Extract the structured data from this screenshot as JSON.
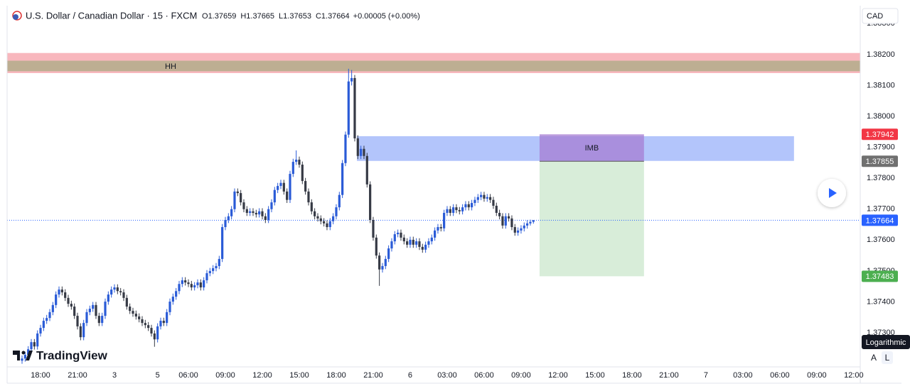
{
  "header": {
    "symbol": "U.S. Dollar / Canadian Dollar · 15 · FXCM",
    "ohlc": [
      {
        "key": "O",
        "value": 1.37659
      },
      {
        "key": "H",
        "value": 1.37665
      },
      {
        "key": "L",
        "value": 1.37653
      },
      {
        "key": "C",
        "value": 1.37664
      }
    ],
    "change": "+0.00005 (+0.00%)"
  },
  "chart_data": {
    "type": "candlestick",
    "up_color": "#2a5bd7",
    "down_color": "#363a45",
    "grid": false,
    "xlim": [
      -4.85,
      272.1
    ],
    "xticks": [
      {
        "value": 6,
        "label": "18:00"
      },
      {
        "value": 18,
        "label": "21:00"
      },
      {
        "value": 30,
        "label": "3"
      },
      {
        "value": 44,
        "label": "5"
      },
      {
        "value": 54,
        "label": "06:00"
      },
      {
        "value": 66,
        "label": "09:00"
      },
      {
        "value": 78,
        "label": "12:00"
      },
      {
        "value": 90,
        "label": "15:00"
      },
      {
        "value": 102,
        "label": "18:00"
      },
      {
        "value": 114,
        "label": "21:00"
      },
      {
        "value": 126,
        "label": "6"
      },
      {
        "value": 138,
        "label": "03:00"
      },
      {
        "value": 150,
        "label": "06:00"
      },
      {
        "value": 162,
        "label": "09:00"
      },
      {
        "value": 174,
        "label": "12:00"
      },
      {
        "value": 186,
        "label": "15:00"
      },
      {
        "value": 198,
        "label": "18:00"
      },
      {
        "value": 210,
        "label": "21:00"
      },
      {
        "value": 222,
        "label": "7"
      },
      {
        "value": 234,
        "label": "03:00"
      },
      {
        "value": 246,
        "label": "06:00"
      },
      {
        "value": 258,
        "label": "09:00"
      },
      {
        "value": 270,
        "label": "12:00"
      }
    ],
    "ylim": [
      1.3719,
      1.38358
    ],
    "yticks": [
      {
        "value": 1.383,
        "label": "1.38300"
      },
      {
        "value": 1.382,
        "label": "1.38200"
      },
      {
        "value": 1.381,
        "label": "1.38100"
      },
      {
        "value": 1.38,
        "label": "1.38000"
      },
      {
        "value": 1.379,
        "label": "1.37900"
      },
      {
        "value": 1.378,
        "label": "1.37800"
      },
      {
        "value": 1.377,
        "label": "1.37700"
      },
      {
        "value": 1.376,
        "label": "1.37600"
      },
      {
        "value": 1.375,
        "label": "1.37500"
      },
      {
        "value": 1.374,
        "label": "1.37400"
      },
      {
        "value": 1.373,
        "label": "1.37300"
      }
    ],
    "current_price": 1.37664,
    "current_color": "#2962ff",
    "zones": [
      {
        "from": 1.3814,
        "to": 1.38205,
        "color": "#f8b7bd"
      },
      {
        "label": "HH",
        "from": 1.38146,
        "to": 1.3818,
        "color": "#bdae92"
      }
    ],
    "imbalance": {
      "from": 1.37856,
      "to": 1.37936,
      "x_from": 108.7,
      "x_to": 250.6,
      "color": "#b3c5fb"
    },
    "position": {
      "label": "IMB",
      "entry": 1.37855,
      "stop": 1.37942,
      "target": 1.37483,
      "x_from": 168,
      "x_to": 201.9,
      "stop_color": "#f23645",
      "entry_color": "#707070",
      "target_color": "#4caf50"
    },
    "candles": [
      [
        1.3721,
        1.37227,
        1.372,
        1.37217
      ],
      [
        1.37217,
        1.37239,
        1.37207,
        1.37229
      ],
      [
        1.37229,
        1.37257,
        1.37219,
        1.37247
      ],
      [
        1.37247,
        1.3728,
        1.37237,
        1.3727
      ],
      [
        1.3727,
        1.3728,
        1.37246,
        1.37256
      ],
      [
        1.37256,
        1.37308,
        1.37246,
        1.37298
      ],
      [
        1.37298,
        1.37326,
        1.37288,
        1.37316
      ],
      [
        1.37316,
        1.37349,
        1.37306,
        1.37339
      ],
      [
        1.37339,
        1.37358,
        1.37329,
        1.37348
      ],
      [
        1.37348,
        1.37377,
        1.37338,
        1.37367
      ],
      [
        1.37367,
        1.374,
        1.37357,
        1.3739
      ],
      [
        1.3739,
        1.37434,
        1.3738,
        1.37424
      ],
      [
        1.37424,
        1.3745,
        1.37414,
        1.3744
      ],
      [
        1.3744,
        1.3745,
        1.37421,
        1.37431
      ],
      [
        1.37431,
        1.37441,
        1.37403,
        1.37413
      ],
      [
        1.37413,
        1.37423,
        1.37384,
        1.37394
      ],
      [
        1.37394,
        1.37404,
        1.37375,
        1.37385
      ],
      [
        1.37385,
        1.37395,
        1.37345,
        1.37355
      ],
      [
        1.37355,
        1.37365,
        1.37311,
        1.37321
      ],
      [
        1.37321,
        1.37331,
        1.37276,
        1.37286
      ],
      [
        1.37286,
        1.37342,
        1.37276,
        1.37332
      ],
      [
        1.37332,
        1.37377,
        1.37322,
        1.37367
      ],
      [
        1.37367,
        1.37388,
        1.37357,
        1.37378
      ],
      [
        1.37378,
        1.374,
        1.37368,
        1.3739
      ],
      [
        1.3739,
        1.374,
        1.37345,
        1.37355
      ],
      [
        1.37355,
        1.37365,
        1.37322,
        1.37332
      ],
      [
        1.37332,
        1.37365,
        1.37322,
        1.37355
      ],
      [
        1.37355,
        1.37411,
        1.37345,
        1.37401
      ],
      [
        1.37401,
        1.37434,
        1.37391,
        1.37424
      ],
      [
        1.37424,
        1.3745,
        1.37414,
        1.3744
      ],
      [
        1.3744,
        1.37457,
        1.3743,
        1.37447
      ],
      [
        1.37447,
        1.37457,
        1.37425,
        1.37435
      ],
      [
        1.37435,
        1.37445,
        1.37421,
        1.37431
      ],
      [
        1.37431,
        1.37441,
        1.37403,
        1.37413
      ],
      [
        1.37413,
        1.37423,
        1.37375,
        1.37385
      ],
      [
        1.37385,
        1.37395,
        1.37361,
        1.37371
      ],
      [
        1.37371,
        1.37381,
        1.37352,
        1.37362
      ],
      [
        1.37362,
        1.37372,
        1.37343,
        1.37353
      ],
      [
        1.37353,
        1.37363,
        1.37334,
        1.37344
      ],
      [
        1.37344,
        1.37354,
        1.37322,
        1.37332
      ],
      [
        1.37332,
        1.37342,
        1.37315,
        1.37325
      ],
      [
        1.37325,
        1.37335,
        1.37306,
        1.37316
      ],
      [
        1.37316,
        1.37326,
        1.37288,
        1.37298
      ],
      [
        1.37298,
        1.37308,
        1.37255,
        1.37279
      ],
      [
        1.37279,
        1.37331,
        1.37269,
        1.37321
      ],
      [
        1.37321,
        1.37349,
        1.37311,
        1.37339
      ],
      [
        1.37339,
        1.37349,
        1.37322,
        1.37332
      ],
      [
        1.37332,
        1.37377,
        1.37322,
        1.37367
      ],
      [
        1.37367,
        1.37411,
        1.37357,
        1.37401
      ],
      [
        1.37401,
        1.37427,
        1.37391,
        1.37417
      ],
      [
        1.37417,
        1.37445,
        1.37407,
        1.37435
      ],
      [
        1.37435,
        1.37468,
        1.37425,
        1.37458
      ],
      [
        1.37458,
        1.3748,
        1.37448,
        1.3747
      ],
      [
        1.3747,
        1.3748,
        1.37453,
        1.37463
      ],
      [
        1.37463,
        1.37473,
        1.37448,
        1.37458
      ],
      [
        1.37458,
        1.37468,
        1.37437,
        1.37447
      ],
      [
        1.37447,
        1.37464,
        1.37437,
        1.37454
      ],
      [
        1.37454,
        1.37473,
        1.37444,
        1.37463
      ],
      [
        1.37463,
        1.37473,
        1.37437,
        1.37447
      ],
      [
        1.37447,
        1.3748,
        1.37437,
        1.3747
      ],
      [
        1.3747,
        1.37503,
        1.3746,
        1.37493
      ],
      [
        1.37493,
        1.3751,
        1.37483,
        1.375
      ],
      [
        1.375,
        1.37519,
        1.3749,
        1.37509
      ],
      [
        1.37509,
        1.37526,
        1.37499,
        1.37516
      ],
      [
        1.37516,
        1.37549,
        1.37506,
        1.37539
      ],
      [
        1.37539,
        1.37652,
        1.37529,
        1.37642
      ],
      [
        1.37642,
        1.37675,
        1.37632,
        1.37665
      ],
      [
        1.37665,
        1.37687,
        1.37655,
        1.37677
      ],
      [
        1.37677,
        1.3771,
        1.37667,
        1.377
      ],
      [
        1.377,
        1.37767,
        1.3769,
        1.37757
      ],
      [
        1.37757,
        1.37767,
        1.37742,
        1.37752
      ],
      [
        1.37752,
        1.37762,
        1.37712,
        1.37722
      ],
      [
        1.37722,
        1.37732,
        1.3769,
        1.377
      ],
      [
        1.377,
        1.3771,
        1.37678,
        1.37688
      ],
      [
        1.37688,
        1.37703,
        1.37678,
        1.37693
      ],
      [
        1.37693,
        1.37703,
        1.37678,
        1.37688
      ],
      [
        1.37688,
        1.37698,
        1.37673,
        1.37683
      ],
      [
        1.37683,
        1.37703,
        1.37673,
        1.37693
      ],
      [
        1.37693,
        1.37703,
        1.37667,
        1.37677
      ],
      [
        1.37677,
        1.37687,
        1.37655,
        1.37665
      ],
      [
        1.37665,
        1.3771,
        1.37655,
        1.377
      ],
      [
        1.377,
        1.37732,
        1.3769,
        1.37722
      ],
      [
        1.37722,
        1.37772,
        1.37712,
        1.37762
      ],
      [
        1.37762,
        1.37785,
        1.37752,
        1.37775
      ],
      [
        1.37775,
        1.37795,
        1.37765,
        1.37785
      ],
      [
        1.37785,
        1.37795,
        1.37747,
        1.37757
      ],
      [
        1.37757,
        1.37767,
        1.3772,
        1.3773
      ],
      [
        1.3773,
        1.37824,
        1.3772,
        1.37814
      ],
      [
        1.37814,
        1.37863,
        1.37804,
        1.37853
      ],
      [
        1.37853,
        1.3789,
        1.37843,
        1.3786
      ],
      [
        1.3786,
        1.3787,
        1.37834,
        1.37844
      ],
      [
        1.37844,
        1.37854,
        1.37781,
        1.37791
      ],
      [
        1.37791,
        1.37801,
        1.37747,
        1.37757
      ],
      [
        1.37757,
        1.37767,
        1.37712,
        1.37722
      ],
      [
        1.37722,
        1.37732,
        1.37683,
        1.37693
      ],
      [
        1.37693,
        1.37703,
        1.37667,
        1.37677
      ],
      [
        1.37677,
        1.37687,
        1.3766,
        1.3767
      ],
      [
        1.3767,
        1.3768,
        1.37651,
        1.37661
      ],
      [
        1.37661,
        1.37671,
        1.37644,
        1.37654
      ],
      [
        1.37654,
        1.37664,
        1.37632,
        1.37642
      ],
      [
        1.37642,
        1.37671,
        1.37632,
        1.37661
      ],
      [
        1.37661,
        1.37687,
        1.37651,
        1.37677
      ],
      [
        1.37677,
        1.37716,
        1.37667,
        1.37706
      ],
      [
        1.37706,
        1.37756,
        1.37696,
        1.37746
      ],
      [
        1.37746,
        1.37859,
        1.37736,
        1.37849
      ],
      [
        1.37849,
        1.37951,
        1.37839,
        1.37941
      ],
      [
        1.37941,
        1.38154,
        1.37931,
        1.38113
      ],
      [
        1.38113,
        1.3815,
        1.381,
        1.38124
      ],
      [
        1.38124,
        1.38134,
        1.37919,
        1.37929
      ],
      [
        1.37929,
        1.37939,
        1.37862,
        1.37872
      ],
      [
        1.37872,
        1.37905,
        1.37862,
        1.37895
      ],
      [
        1.37895,
        1.37905,
        1.37862,
        1.37872
      ],
      [
        1.37872,
        1.37882,
        1.3777,
        1.3778
      ],
      [
        1.3778,
        1.3779,
        1.37655,
        1.37665
      ],
      [
        1.37665,
        1.37675,
        1.37598,
        1.37608
      ],
      [
        1.37608,
        1.37618,
        1.3754,
        1.3755
      ],
      [
        1.3755,
        1.3756,
        1.37452,
        1.37505
      ],
      [
        1.37505,
        1.37526,
        1.37495,
        1.37516
      ],
      [
        1.37516,
        1.37549,
        1.37506,
        1.37539
      ],
      [
        1.37539,
        1.37583,
        1.37529,
        1.37573
      ],
      [
        1.37573,
        1.37606,
        1.37563,
        1.37596
      ],
      [
        1.37596,
        1.37629,
        1.37586,
        1.37619
      ],
      [
        1.37619,
        1.37634,
        1.37609,
        1.37624
      ],
      [
        1.37624,
        1.37634,
        1.37598,
        1.37608
      ],
      [
        1.37608,
        1.37618,
        1.37586,
        1.37596
      ],
      [
        1.37596,
        1.37606,
        1.37575,
        1.37585
      ],
      [
        1.37585,
        1.37611,
        1.37575,
        1.37601
      ],
      [
        1.37601,
        1.37611,
        1.37575,
        1.37585
      ],
      [
        1.37585,
        1.37606,
        1.37575,
        1.37596
      ],
      [
        1.37596,
        1.37606,
        1.37568,
        1.37578
      ],
      [
        1.37578,
        1.37588,
        1.37559,
        1.37569
      ],
      [
        1.37569,
        1.37595,
        1.37559,
        1.37585
      ],
      [
        1.37585,
        1.37606,
        1.37575,
        1.37596
      ],
      [
        1.37596,
        1.37618,
        1.37586,
        1.37608
      ],
      [
        1.37608,
        1.37641,
        1.37598,
        1.37631
      ],
      [
        1.37631,
        1.37652,
        1.37621,
        1.37642
      ],
      [
        1.37642,
        1.37652,
        1.37628,
        1.37638
      ],
      [
        1.37638,
        1.37698,
        1.37628,
        1.37688
      ],
      [
        1.37688,
        1.3771,
        1.37678,
        1.377
      ],
      [
        1.377,
        1.3771,
        1.37678,
        1.37688
      ],
      [
        1.37688,
        1.37716,
        1.37678,
        1.37706
      ],
      [
        1.37706,
        1.37716,
        1.37687,
        1.37697
      ],
      [
        1.37697,
        1.37707,
        1.37683,
        1.37693
      ],
      [
        1.37693,
        1.37716,
        1.37683,
        1.37706
      ],
      [
        1.37706,
        1.37726,
        1.37696,
        1.37716
      ],
      [
        1.37716,
        1.37726,
        1.37696,
        1.37706
      ],
      [
        1.37706,
        1.3773,
        1.37696,
        1.3772
      ],
      [
        1.3772,
        1.3774,
        1.3771,
        1.3773
      ],
      [
        1.3773,
        1.37749,
        1.3772,
        1.37739
      ],
      [
        1.37739,
        1.37756,
        1.37729,
        1.37746
      ],
      [
        1.37746,
        1.37756,
        1.37724,
        1.37734
      ],
      [
        1.37734,
        1.37749,
        1.37724,
        1.37739
      ],
      [
        1.37739,
        1.37749,
        1.3772,
        1.3773
      ],
      [
        1.3773,
        1.3774,
        1.37701,
        1.37711
      ],
      [
        1.37711,
        1.37721,
        1.37678,
        1.37688
      ],
      [
        1.37688,
        1.37698,
        1.37667,
        1.37677
      ],
      [
        1.37677,
        1.37687,
        1.37637,
        1.37647
      ],
      [
        1.37647,
        1.37687,
        1.37637,
        1.37677
      ],
      [
        1.37677,
        1.37687,
        1.3766,
        1.3767
      ],
      [
        1.3767,
        1.3768,
        1.37632,
        1.37642
      ],
      [
        1.37642,
        1.37652,
        1.37614,
        1.37624
      ],
      [
        1.37624,
        1.37641,
        1.37614,
        1.37631
      ],
      [
        1.37631,
        1.37648,
        1.37621,
        1.37638
      ],
      [
        1.37638,
        1.37657,
        1.37628,
        1.37647
      ],
      [
        1.37647,
        1.37664,
        1.37637,
        1.37654
      ],
      [
        1.37654,
        1.37666,
        1.37647,
        1.37659
      ],
      [
        1.37659,
        1.37665,
        1.37653,
        1.37664
      ]
    ]
  },
  "currency": "CAD",
  "scale_tooltip": "Logarithmic",
  "scale_buttons": [
    "A",
    "L"
  ],
  "brand": "TradingView"
}
